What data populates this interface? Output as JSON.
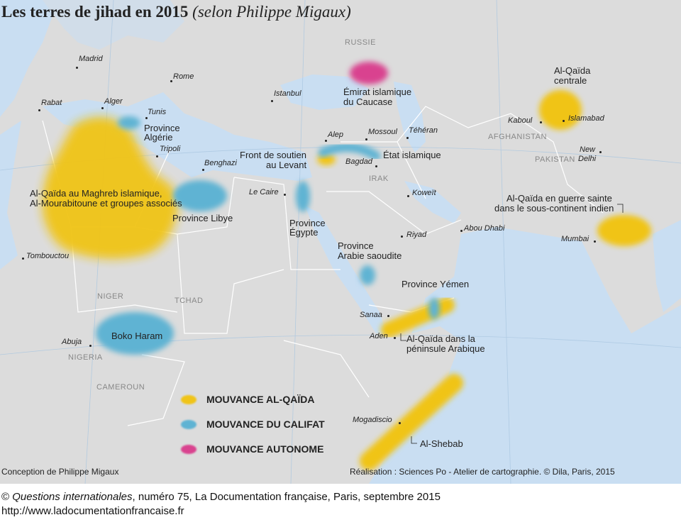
{
  "title": "Les terres de jihad en 2015",
  "subtitle": "(selon Philippe Migaux)",
  "colors": {
    "sea": "#c9def2",
    "land": "#dcdcdc",
    "al_qaida": "#f0c419",
    "califat": "#5fb3d3",
    "autonome": "#d9438f"
  },
  "cities": {
    "madrid": "Madrid",
    "rome": "Rome",
    "istanbul": "Istanbul",
    "rabat": "Rabat",
    "alger": "Alger",
    "tunis": "Tunis",
    "tripoli": "Tripoli",
    "benghazi": "Benghazi",
    "le_caire": "Le Caire",
    "alep": "Alep",
    "mossoul": "Mossoul",
    "teheran": "Téhéran",
    "bagdad": "Bagdad",
    "koweit": "Koweït",
    "riyad": "Riyad",
    "abou_dhabi": "Abou Dhabi",
    "kaboul": "Kaboul",
    "islamabad": "Islamabad",
    "new_delhi_1": "New",
    "new_delhi_2": "Delhi",
    "mumbai": "Mumbai",
    "tombouctou": "Tombouctou",
    "abuja": "Abuja",
    "sanaa": "Sanaa",
    "aden": "Aden",
    "mogadiscio": "Mogadiscio"
  },
  "countries": {
    "russie": "RUSSIE",
    "irak": "IRAK",
    "afghanistan": "AFGHANISTAN",
    "pakistan": "PAKISTAN",
    "niger": "NIGER",
    "tchad": "TCHAD",
    "nigeria": "NIGERIA",
    "cameroun": "CAMEROUN"
  },
  "groups": {
    "caucase_1": "Émirat islamique",
    "caucase_2": "du Caucase",
    "alqaida_centrale_1": "Al-Qaïda",
    "alqaida_centrale_2": "centrale",
    "province_algerie_1": "Province",
    "province_algerie_2": "Algérie",
    "front_1": "Front de soutien",
    "front_2": "au Levant",
    "etat_islamique": "État islamique",
    "aqmi_1": "Al-Qaïda au Maghreb islamique,",
    "aqmi_2": "Al-Mourabitoune et groupes associés",
    "province_libye": "Province Libye",
    "province_egypte_1": "Province",
    "province_egypte_2": "Égypte",
    "province_arabie_1": "Province",
    "province_arabie_2": "Arabie saoudite",
    "aqis_1": "Al-Qaïda en guerre sainte",
    "aqis_2": "dans le sous-continent indien",
    "province_yemen": "Province Yémen",
    "aqpa_1": "Al-Qaïda dans la",
    "aqpa_2": "péninsule Arabique",
    "boko_haram": "Boko Haram",
    "al_shebab": "Al-Shebab"
  },
  "legend": [
    {
      "label": "MOUVANCE AL-QAÏDA",
      "color": "#f0c419"
    },
    {
      "label": "MOUVANCE DU CALIFAT",
      "color": "#5fb3d3"
    },
    {
      "label": "MOUVANCE AUTONOME",
      "color": "#d9438f"
    }
  ],
  "credits": {
    "conception": "Conception de Philippe Migaux",
    "realisation": "Réalisation : Sciences Po - Atelier de cartographie. © Dila, Paris, 2015"
  },
  "footer": {
    "line1_prefix": "© ",
    "line1_italic": "Questions internationales",
    "line1_rest": ", numéro 75, La Documentation française, Paris, septembre 2015",
    "line2": "http://www.ladocumentationfrancaise.fr"
  }
}
